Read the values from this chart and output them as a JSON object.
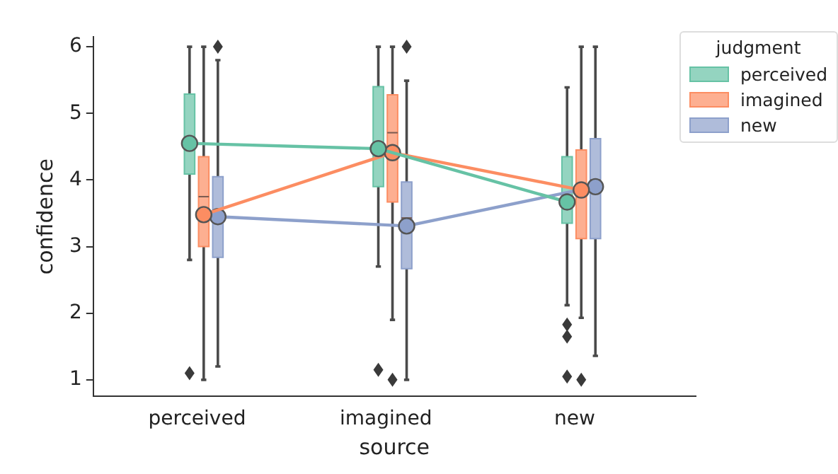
{
  "chart_data": {
    "type": "box",
    "xlabel": "source",
    "ylabel": "confidence",
    "legend_title": "judgment",
    "legend": "top right",
    "grid": false,
    "categories": [
      "perceived",
      "imagined",
      "new"
    ],
    "ylim": [
      0.75,
      6.15
    ],
    "yticks": [
      1,
      2,
      3,
      4,
      5,
      6
    ],
    "series": [
      {
        "name": "perceived",
        "color": "#66c2a5",
        "boxes": [
          {
            "low": 2.8,
            "q1": 4.09,
            "median": 4.6,
            "q3": 5.29,
            "high": 6,
            "outliers": [
              1.1
            ]
          },
          {
            "low": 2.7,
            "q1": 3.9,
            "median": 4.52,
            "q3": 5.4,
            "high": 6,
            "outliers": [
              1.15
            ]
          },
          {
            "low": 2.12,
            "q1": 3.35,
            "median": 3.67,
            "q3": 4.35,
            "high": 5.39,
            "outliers": [
              1.83,
              1.65,
              1.05
            ]
          }
        ]
      },
      {
        "name": "imagined",
        "color": "#fc8d62",
        "boxes": [
          {
            "low": 1,
            "q1": 3,
            "median": 3.75,
            "q3": 4.35,
            "high": 6
          },
          {
            "low": 1.9,
            "q1": 3.67,
            "median": 4.71,
            "q3": 5.28,
            "high": 6,
            "outliers": [
              1
            ]
          },
          {
            "low": 1.93,
            "q1": 3.12,
            "median": 3.8,
            "q3": 4.45,
            "high": 6,
            "outliers": [
              1
            ]
          }
        ]
      },
      {
        "name": "new",
        "color": "#8da0cb",
        "boxes": [
          {
            "low": 1.2,
            "q1": 2.84,
            "median": 3.46,
            "q3": 4.05,
            "high": 5.8,
            "outliers": [
              6
            ]
          },
          {
            "low": 1,
            "q1": 2.67,
            "median": 3.43,
            "q3": 3.97,
            "high": 5.49,
            "outliers": [
              6
            ]
          },
          {
            "low": 1.36,
            "q1": 3.12,
            "median": 4,
            "q3": 4.62,
            "high": 6
          }
        ]
      },
      {
        "type": "line",
        "marker": "circle",
        "color": "#66c2a5",
        "values": [
          4.55,
          4.47,
          3.67
        ]
      },
      {
        "type": "line",
        "marker": "circle",
        "color": "#fc8d62",
        "values": [
          3.48,
          4.41,
          3.85
        ]
      },
      {
        "type": "line",
        "marker": "circle",
        "color": "#8da0cb",
        "values": [
          3.45,
          3.31,
          3.9
        ]
      }
    ]
  }
}
